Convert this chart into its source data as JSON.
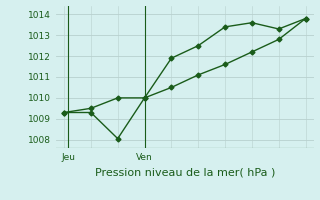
{
  "line1_x": [
    0,
    1,
    2,
    3,
    4,
    5,
    6,
    7,
    8,
    9
  ],
  "line1_y": [
    1009.3,
    1009.3,
    1008.05,
    1010.0,
    1011.9,
    1012.5,
    1013.4,
    1013.6,
    1013.3,
    1013.8
  ],
  "line2_x": [
    0,
    1,
    2,
    3,
    4,
    5,
    6,
    7,
    8,
    9
  ],
  "line2_y": [
    1009.3,
    1009.5,
    1010.0,
    1010.0,
    1010.5,
    1011.1,
    1011.6,
    1012.2,
    1012.8,
    1013.8
  ],
  "line_color": "#1a5c1a",
  "bg_color": "#d6f0ef",
  "grid_color": "#b8d0ce",
  "xlabel": "Pression niveau de la mer( hPa )",
  "xlabel_fontsize": 8,
  "yticks": [
    1008,
    1009,
    1010,
    1011,
    1012,
    1013,
    1014
  ],
  "ylim": [
    1007.6,
    1014.4
  ],
  "xlim": [
    -0.3,
    9.3
  ],
  "xtick_positions": [
    0.15,
    3.0
  ],
  "xtick_labels": [
    "Jeu",
    "Ven"
  ],
  "vline_positions": [
    0.15,
    3.0
  ],
  "tick_fontsize": 6.5,
  "marker": "D",
  "marker_size": 2.5,
  "linewidth": 1.0
}
